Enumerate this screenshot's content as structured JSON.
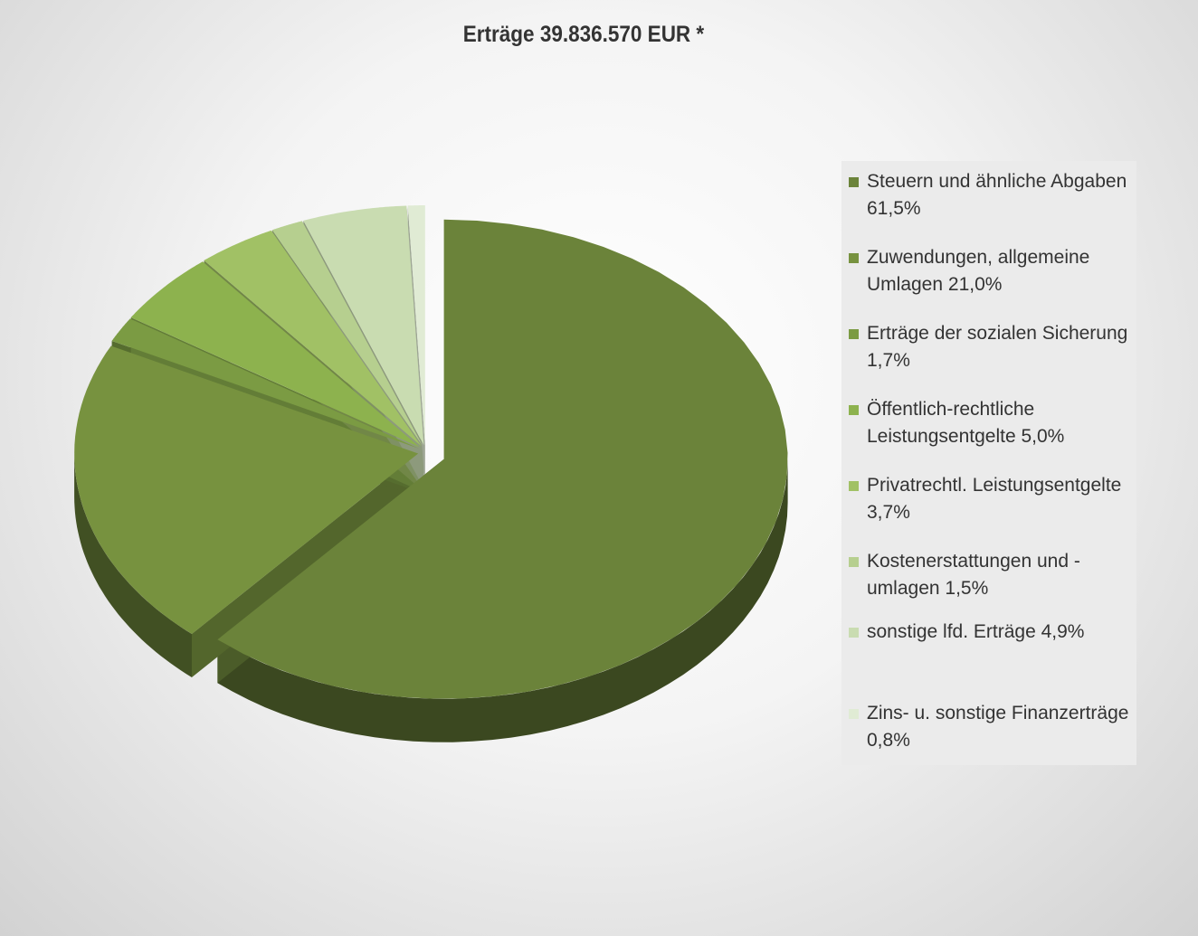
{
  "chart_data": {
    "type": "pie",
    "title": "Erträge 39.836.570 EUR *",
    "categories": [
      "Steuern und ähnliche Abgaben",
      "Zuwendungen, allgemeine Umlagen",
      "Erträge der sozialen Sicherung",
      "Öffentlich-rechtliche Leistungsentgelte",
      "Privatrechtl. Leistungsentgelte",
      "Kostenerstattungen und - umlagen",
      "sonstige lfd. Erträge",
      "Zins- u. sonstige Finanzerträge"
    ],
    "values": [
      61.5,
      21.0,
      1.7,
      5.0,
      3.7,
      1.5,
      4.9,
      0.8
    ],
    "value_labels": [
      "61,5%",
      "21,0%",
      "1,7%",
      "5,0%",
      "3,7%",
      "1,5%",
      "4,9%",
      "0,8%"
    ],
    "colors": [
      "#6b833a",
      "#77923f",
      "#7b9b43",
      "#8db24e",
      "#a1c165",
      "#b6cf8f",
      "#c9dcb1",
      "#e0ebd4"
    ],
    "legend": "right"
  }
}
